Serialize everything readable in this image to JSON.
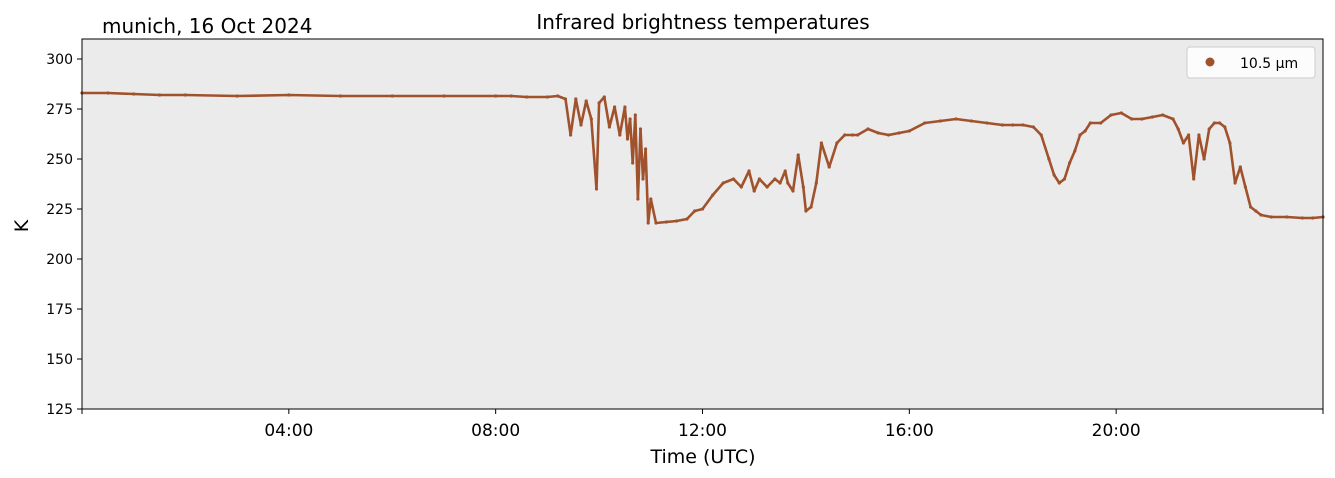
{
  "chart_data": {
    "type": "scatter",
    "title": "Infrared brightness temperatures",
    "subtitle": "munich, 16 Oct 2024",
    "xlabel": "Time (UTC)",
    "ylabel": "K",
    "xlim_hours": [
      0,
      24
    ],
    "ylim": [
      125,
      310
    ],
    "x_ticks": [
      "04:00",
      "08:00",
      "12:00",
      "16:00",
      "20:00"
    ],
    "y_ticks": [
      125,
      150,
      175,
      200,
      225,
      250,
      275,
      300
    ],
    "grid": false,
    "background_color": "#ebebeb",
    "legend_position": "top-right",
    "series": [
      {
        "name": "10.5 µm",
        "color": "#a0522d",
        "x_hours": [
          0.0,
          0.5,
          1.0,
          1.5,
          2.0,
          3.0,
          4.0,
          5.0,
          6.0,
          7.0,
          8.0,
          8.3,
          8.6,
          9.0,
          9.2,
          9.35,
          9.45,
          9.55,
          9.65,
          9.75,
          9.85,
          9.95,
          10.0,
          10.1,
          10.2,
          10.3,
          10.4,
          10.5,
          10.55,
          10.6,
          10.65,
          10.7,
          10.75,
          10.8,
          10.85,
          10.9,
          10.95,
          11.0,
          11.1,
          11.3,
          11.5,
          11.7,
          11.85,
          12.0,
          12.2,
          12.4,
          12.6,
          12.75,
          12.9,
          13.0,
          13.1,
          13.25,
          13.4,
          13.5,
          13.6,
          13.65,
          13.75,
          13.85,
          13.95,
          14.0,
          14.1,
          14.2,
          14.3,
          14.45,
          14.6,
          14.75,
          14.9,
          15.0,
          15.2,
          15.4,
          15.6,
          15.8,
          16.0,
          16.3,
          16.6,
          16.9,
          17.2,
          17.5,
          17.8,
          18.0,
          18.2,
          18.4,
          18.55,
          18.7,
          18.8,
          18.9,
          19.0,
          19.1,
          19.2,
          19.3,
          19.4,
          19.5,
          19.7,
          19.9,
          20.1,
          20.3,
          20.5,
          20.7,
          20.9,
          21.1,
          21.2,
          21.3,
          21.4,
          21.5,
          21.6,
          21.7,
          21.8,
          21.9,
          22.0,
          22.1,
          22.2,
          22.3,
          22.4,
          22.5,
          22.6,
          22.7,
          22.8,
          23.0,
          23.3,
          23.6,
          23.8,
          24.0
        ],
        "y_kelvin": [
          283,
          283,
          282.5,
          282,
          282,
          281.5,
          282,
          281.5,
          281.5,
          281.5,
          281.5,
          281.5,
          281,
          281,
          281.5,
          280,
          262,
          280,
          267,
          279,
          270,
          235,
          278,
          281,
          266,
          276,
          262,
          276,
          260,
          270,
          248,
          272,
          230,
          265,
          240,
          255,
          218,
          230,
          218,
          218.5,
          219,
          220,
          224,
          225,
          232,
          238,
          240,
          236,
          244,
          234,
          240,
          236,
          240,
          238,
          244,
          238,
          234,
          252,
          236,
          224,
          226,
          238,
          258,
          246,
          258,
          262,
          262,
          262,
          265,
          263,
          262,
          263,
          264,
          268,
          269,
          270,
          269,
          268,
          267,
          267,
          267,
          266,
          262,
          250,
          242,
          238,
          240,
          248,
          254,
          262,
          264,
          268,
          268,
          272,
          273,
          270,
          270,
          271,
          272,
          270,
          265,
          258,
          262,
          240,
          262,
          250,
          265,
          268,
          268,
          266,
          258,
          238,
          246,
          236,
          226,
          224,
          222,
          221,
          221,
          220.5,
          220.5,
          221
        ]
      }
    ]
  }
}
